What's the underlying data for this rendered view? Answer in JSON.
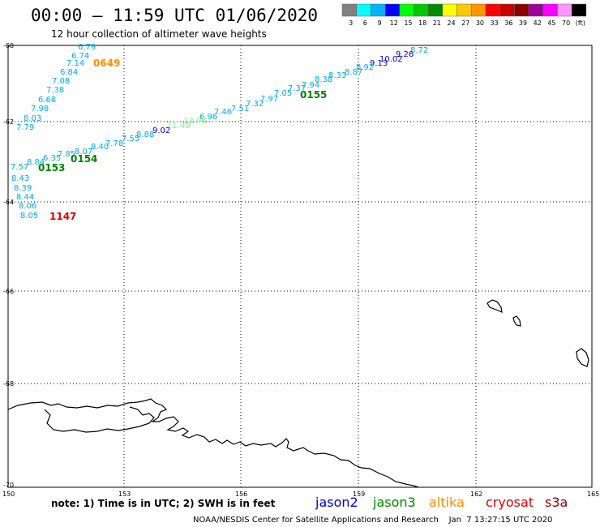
{
  "title": "00:00 – 11:59 UTC 01/06/2020",
  "subtitle": "12 hour collection of altimeter wave heights",
  "legend": {
    "colors": [
      "#808080",
      "#00ffff",
      "#00b4ff",
      "#0000ff",
      "#00ff00",
      "#00c800",
      "#008c00",
      "#ffff00",
      "#ffc800",
      "#ff9600",
      "#ff0000",
      "#c80000",
      "#8c0000",
      "#a000a0",
      "#ff00ff",
      "#ff96ff",
      "#000000"
    ],
    "labels": [
      "3",
      "6",
      "9",
      "12",
      "15",
      "18",
      "21",
      "24",
      "27",
      "30",
      "33",
      "36",
      "39",
      "42",
      "45",
      "70",
      "(ft)"
    ]
  },
  "lat_labels": [
    "-60",
    "-62",
    "-64",
    "-66",
    "-68",
    "-70"
  ],
  "lon_labels": [
    "150",
    "153",
    "156",
    "159",
    "162",
    "165"
  ],
  "note": "note: 1) Time is in UTC; 2) SWH is in feet",
  "satellites": [
    {
      "name": "jason2",
      "color": "#0000cc"
    },
    {
      "name": "jason3",
      "color": "#008800"
    },
    {
      "name": "altika",
      "color": "#ff8c00"
    },
    {
      "name": "cryosat",
      "color": "#dd0000"
    },
    {
      "name": "s3a",
      "color": "#8b0000"
    }
  ],
  "footer": "NOAA/NESDIS Center for Satellite Applications and Research    Jan  7 13:27:15 UTC 2020",
  "pass_labels": [
    {
      "text": "0649",
      "color": "#ff8c00"
    },
    {
      "text": "0155",
      "color": "#008000"
    },
    {
      "text": "0154",
      "color": "#008000"
    },
    {
      "text": "0153",
      "color": "#008000"
    },
    {
      "text": "1147",
      "color": "#dd0000"
    }
  ],
  "track_values": [
    {
      "text": "6.79",
      "color": "#00aaee"
    },
    {
      "text": "6.74",
      "color": "#00aaee"
    },
    {
      "text": "7.14",
      "color": "#00aaee"
    },
    {
      "text": "6.84",
      "color": "#00aaee"
    },
    {
      "text": "7.08",
      "color": "#00aaee"
    },
    {
      "text": "7.38",
      "color": "#00aaee"
    },
    {
      "text": "6.68",
      "color": "#00aaee"
    },
    {
      "text": "7.98",
      "color": "#00aaee"
    },
    {
      "text": "8.03",
      "color": "#00aaee"
    },
    {
      "text": "7.79",
      "color": "#00aaee"
    },
    {
      "text": "8.72",
      "color": "#00aaee"
    },
    {
      "text": "9.26",
      "color": "#0000cc"
    },
    {
      "text": "10.02",
      "color": "#0000cc"
    },
    {
      "text": "9.13",
      "color": "#0000cc"
    },
    {
      "text": "8.92",
      "color": "#00aaee"
    },
    {
      "text": "8.87",
      "color": "#00aaee"
    },
    {
      "text": "8.33",
      "color": "#00aaee"
    },
    {
      "text": "8.38",
      "color": "#00aaee"
    },
    {
      "text": "7.94",
      "color": "#00aaee"
    },
    {
      "text": "7.37",
      "color": "#00aaee"
    },
    {
      "text": "7.05",
      "color": "#00aaee"
    },
    {
      "text": "7.97",
      "color": "#00aaee"
    },
    {
      "text": "7.32",
      "color": "#00aaee"
    },
    {
      "text": "7.51",
      "color": "#00aaee"
    },
    {
      "text": "7.46",
      "color": "#00aaee"
    },
    {
      "text": "6.96",
      "color": "#00aaee"
    },
    {
      "text": "13.96",
      "color": "#88ee88"
    },
    {
      "text": "11.40",
      "color": "#88ee88"
    },
    {
      "text": "9.02",
      "color": "#0000cc"
    },
    {
      "text": "8.88",
      "color": "#00aaee"
    },
    {
      "text": "7.55",
      "color": "#00aaee"
    },
    {
      "text": "7.78",
      "color": "#00aaee"
    },
    {
      "text": "8.40",
      "color": "#00aaee"
    },
    {
      "text": "8.07",
      "color": "#00aaee"
    },
    {
      "text": "7.85",
      "color": "#00aaee"
    },
    {
      "text": "6.35",
      "color": "#00aaee"
    },
    {
      "text": "8.84",
      "color": "#00aaee"
    },
    {
      "text": "7.57",
      "color": "#00aaee"
    },
    {
      "text": "8.43",
      "color": "#00aaee"
    },
    {
      "text": "8.39",
      "color": "#00aaee"
    },
    {
      "text": "8.44",
      "color": "#00aaee"
    },
    {
      "text": "8.06",
      "color": "#00aaee"
    },
    {
      "text": "8.05",
      "color": "#00aaee"
    }
  ]
}
